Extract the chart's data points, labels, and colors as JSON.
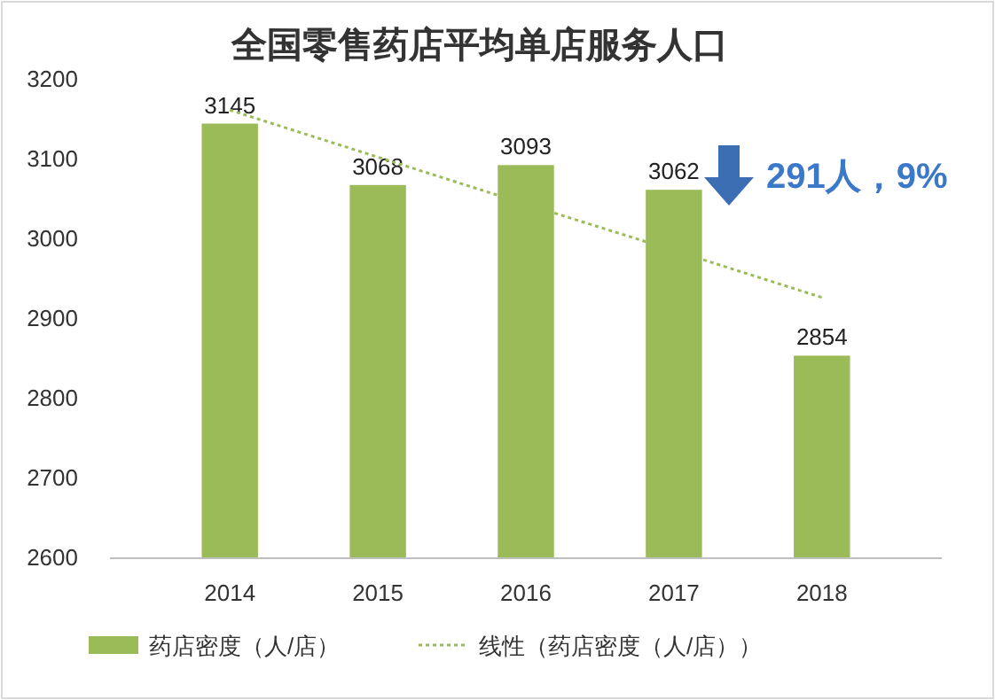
{
  "chart_data": {
    "type": "bar",
    "title": "全国零售药店平均单店服务人口",
    "categories": [
      "2014",
      "2015",
      "2016",
      "2017",
      "2018"
    ],
    "series": [
      {
        "name": "药店密度（人/店）",
        "color": "#9bbb59",
        "values": [
          3145,
          3068,
          3093,
          3062,
          2854
        ],
        "value_labels": [
          "3145",
          "3068",
          "3093",
          "3062",
          "2854"
        ]
      },
      {
        "name": "线性（药店密度（人/店））",
        "type": "line",
        "color": "#9bbb59",
        "line_style": "dotted",
        "values": [
          3162,
          3103,
          3044,
          2986,
          2927
        ]
      }
    ],
    "ylim": [
      2600,
      3200
    ],
    "yticks": [
      2600,
      2700,
      2800,
      2900,
      3000,
      3100,
      3200
    ],
    "legend": "bottom",
    "annotations": [
      "291人，9%"
    ]
  }
}
